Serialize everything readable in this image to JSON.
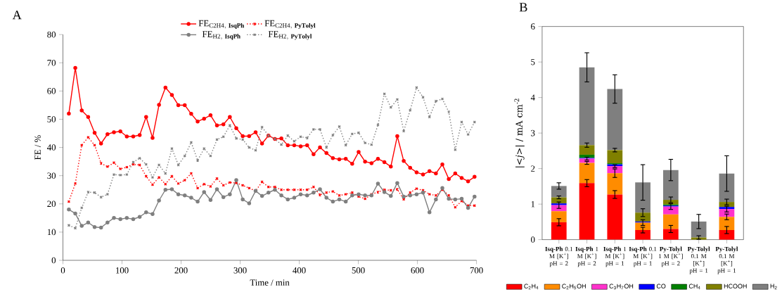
{
  "chart_data": [
    {
      "type": "line",
      "title": "A",
      "xlabel": "Time / min",
      "ylabel": "FE / %",
      "xlim": [
        0,
        700
      ],
      "xticks": [
        0,
        100,
        200,
        300,
        400,
        500,
        600,
        700
      ],
      "ylim": [
        0,
        80
      ],
      "yticks": [
        0,
        10,
        20,
        30,
        40,
        50,
        60,
        70,
        80
      ],
      "legend": "top",
      "x": [
        10,
        20.9,
        31.8,
        42.7,
        53.6,
        64.5,
        75.4,
        86.3,
        97.2,
        108.1,
        119,
        129.9,
        140.8,
        151.7,
        162.6,
        173.5,
        184.4,
        195.3,
        206.2,
        217.1,
        228,
        238.9,
        249.8,
        260.7,
        271.6,
        282.5,
        293.4,
        304.3,
        315.2,
        326.1,
        337,
        347.9,
        358.8,
        369.7,
        380.6,
        391.5,
        402.4,
        413.3,
        424.2,
        435.1,
        446,
        456.9,
        467.8,
        478.7,
        489.6,
        500.5,
        511.4,
        522.3,
        533.2,
        544.1,
        555,
        565.9,
        576.8,
        587.7,
        598.6,
        609.5,
        620.4,
        631.3,
        642.2,
        653.1,
        664,
        674.9,
        685.8,
        696.7
      ],
      "series": [
        {
          "name": "\\mathrm{FE}_{\\mathrm{C2H4,}\\ \\mathbf{IsqPh}}",
          "color": "#ff0000",
          "marker": "circle",
          "line_style": "solid",
          "values": [
            52,
            68.2,
            53.1,
            50.8,
            45.2,
            41.4,
            44.7,
            45.4,
            45.7,
            43.9,
            43.9,
            44.4,
            50.8,
            43.4,
            55.1,
            61.2,
            58.6,
            55,
            55,
            51.9,
            49.2,
            50.2,
            51.4,
            47.8,
            48.2,
            50.8,
            46.8,
            44,
            44,
            45.4,
            41.4,
            44.2,
            43,
            43.2,
            40.8,
            40.8,
            40.4,
            40.8,
            37.6,
            40,
            38,
            36.2,
            35.8,
            36,
            34.2,
            38.4,
            35,
            34.4,
            36,
            34.8,
            33.2,
            44,
            35.2,
            32.8,
            31.2,
            30.4,
            31.6,
            30.8,
            34,
            28.8,
            30.8,
            29.2,
            28,
            29.6
          ]
        },
        {
          "name": "\\mathrm{FE}_{\\mathrm{C2H4,}\\ \\mathbf{PyTolyl}}",
          "color": "#ff0000",
          "marker": "cross",
          "line_style": "dotted",
          "values": [
            20.8,
            27.2,
            40.8,
            43.6,
            40.8,
            34.4,
            33.2,
            34.6,
            32.4,
            33,
            34,
            33.8,
            29.8,
            26.8,
            29.4,
            27,
            29.8,
            27.2,
            28.4,
            30.8,
            25.6,
            27,
            26.2,
            29,
            26.6,
            27.6,
            27.4,
            26.6,
            25.6,
            24.6,
            27.8,
            26,
            26,
            25,
            25,
            25,
            25,
            25,
            26,
            23.2,
            24,
            24.4,
            23,
            23.4,
            24,
            22.6,
            21.8,
            23.4,
            24.2,
            25,
            24.8,
            25.2,
            21.6,
            24,
            25.4,
            24.8,
            23.4,
            23,
            25,
            23,
            18.8,
            21,
            19.4,
            19.4
          ]
        },
        {
          "name": "\\mathrm{FE}_{\\mathrm{H2,}\\ \\mathbf{IsqPh}}",
          "color": "#7f7f7f",
          "marker": "circle",
          "line_style": "solid",
          "values": [
            18,
            16.6,
            12.2,
            13.4,
            11.8,
            11.6,
            13.4,
            15,
            14.6,
            15,
            14.6,
            15.4,
            17,
            16.4,
            21.2,
            25,
            25.2,
            23.4,
            23,
            22.2,
            20.8,
            24.2,
            21.4,
            25.2,
            22.4,
            23.4,
            28.4,
            21.6,
            20.2,
            24.6,
            22.8,
            24,
            25,
            23,
            21.6,
            22.2,
            23.4,
            23,
            24,
            25.2,
            22.2,
            20.8,
            21.6,
            20.8,
            23,
            23.4,
            23,
            23,
            27.2,
            24.2,
            22.8,
            27.4,
            22.6,
            23,
            23.4,
            24,
            17,
            21.6,
            25.6,
            21.8,
            21.6,
            21.8,
            18.6,
            22.6
          ]
        },
        {
          "name": "\\mathrm{FE}_{\\mathrm{H2,}\\ \\mathbf{PyTolyl}}",
          "color": "#7f7f7f",
          "marker": "cross",
          "line_style": "dotted",
          "values": [
            12.4,
            11.4,
            18.6,
            24.2,
            24,
            22.4,
            23.4,
            30.4,
            30.2,
            30.4,
            34.8,
            36.2,
            34,
            29.4,
            33.8,
            30.8,
            39.6,
            33.8,
            37,
            41.8,
            35.4,
            39.6,
            37,
            42.8,
            43.8,
            47.8,
            43.2,
            42.8,
            40,
            39,
            47.2,
            44.2,
            43,
            41,
            44.2,
            42.2,
            43.8,
            43.4,
            46.4,
            46.4,
            40,
            44.4,
            47.4,
            40.8,
            44.8,
            45.2,
            41.6,
            41,
            48,
            59,
            54.2,
            57,
            45.8,
            53.2,
            61.2,
            57.8,
            50.8,
            56.4,
            57.2,
            52.6,
            39.2,
            49,
            44.6,
            49
          ]
        }
      ]
    },
    {
      "type": "bar",
      "stacked": true,
      "title": "B",
      "ylabel": "|*<j>*| / mA cm$^{-2}$",
      "ylim": [
        0,
        6
      ],
      "yticks": [
        0,
        1,
        2,
        3,
        4,
        5,
        6
      ],
      "legend": "bottom",
      "categories": [
        "**Isq-Ph** 0.1 M [K$^{+}$] pH = 2",
        "**Isq-Ph** 1 M [K$^{+}$] pH = 2",
        "**Isq-Ph** 1 M [K$^{+}$] pH = 1",
        "**Isq-Ph** 0.1 M [K$^{+}$] pH = 1",
        "**Py-Tolyl** 1 M [K$^{+}$] pH = 2",
        "**Py-Tolyl** 0.1 M [K$^{+}$] pH = 1",
        "**Py-Tolyl** 0.1 M [K$^{+}$] pH = 1"
      ],
      "series": [
        {
          "name": "C$_{2}$H$_{4}$",
          "color": "#ff0000",
          "values": [
            0.49,
            1.59,
            1.27,
            0.27,
            0.3,
            0,
            0.27
          ],
          "errors": [
            0.1,
            0.1,
            0.11,
            0.08,
            0.1,
            null,
            0.1
          ]
        },
        {
          "name": "C$_{2}$H$_{5}$OH",
          "color": "#ff8c00",
          "values": [
            0.31,
            0.57,
            0.6,
            0.21,
            0.41,
            0,
            0.37
          ],
          "errors": [
            null,
            0.04,
            0.12,
            0.08,
            null,
            null,
            0.08
          ]
        },
        {
          "name": "C$_{3}$H$_{7}$OH",
          "color": "#ff33cc",
          "values": [
            0.17,
            0.12,
            0.2,
            0,
            0.22,
            0,
            0.22
          ],
          "errors": [
            0.09,
            0.04,
            0.04,
            null,
            0.08,
            null,
            0.08
          ]
        },
        {
          "name": "CO",
          "color": "#0000ff",
          "values": [
            0.05,
            0.02,
            0.05,
            0.03,
            0.03,
            0,
            0.06
          ]
        },
        {
          "name": "CH$_{4}$",
          "color": "#008000",
          "values": [
            0,
            0.09,
            0.03,
            0,
            0.03,
            0,
            0
          ]
        },
        {
          "name": "HCOOH",
          "color": "#808000",
          "values": [
            0.17,
            0.27,
            0.37,
            0.25,
            0.13,
            0.06,
            0.14
          ],
          "errors": [
            0.04,
            0.06,
            0.05,
            0.11,
            0.08,
            0.05,
            0.08
          ]
        },
        {
          "name": "H$_{2}$",
          "color": "#7f7f7f",
          "values": [
            0.32,
            2.19,
            1.72,
            0.85,
            0.84,
            0.45,
            0.8
          ],
          "errors": [
            0.09,
            0.41,
            0.4,
            0.5,
            0.3,
            0.2,
            0.5
          ]
        }
      ]
    }
  ]
}
